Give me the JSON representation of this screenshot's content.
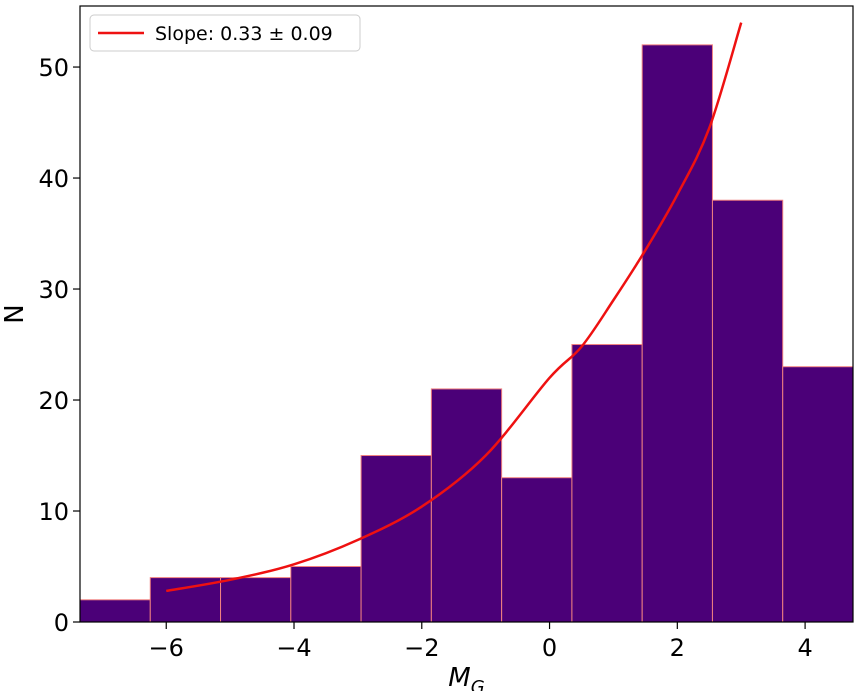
{
  "chart_data": {
    "type": "bar",
    "subtype": "histogram",
    "bins": [
      {
        "left": -7.35,
        "right": -6.25,
        "count": 2
      },
      {
        "left": -6.25,
        "right": -5.15,
        "count": 4
      },
      {
        "left": -5.15,
        "right": -4.05,
        "count": 4
      },
      {
        "left": -4.05,
        "right": -2.95,
        "count": 5
      },
      {
        "left": -2.95,
        "right": -1.85,
        "count": 15
      },
      {
        "left": -1.85,
        "right": -0.75,
        "count": 21
      },
      {
        "left": -0.75,
        "right": 0.35,
        "count": 13
      },
      {
        "left": 0.35,
        "right": 1.45,
        "count": 25
      },
      {
        "left": 1.45,
        "right": 2.55,
        "count": 52
      },
      {
        "left": 2.55,
        "right": 3.65,
        "count": 38
      },
      {
        "left": 3.65,
        "right": 4.75,
        "count": 23
      }
    ],
    "fit_curve": {
      "name": "Slope: 0.33 ± 0.09",
      "type": "exponential",
      "points": [
        [
          -6.0,
          2.8
        ],
        [
          -5.0,
          3.8
        ],
        [
          -4.0,
          5.2
        ],
        [
          -3.0,
          7.4
        ],
        [
          -2.0,
          10.4
        ],
        [
          -1.0,
          15.0
        ],
        [
          0.0,
          22.0
        ],
        [
          0.5,
          24.8
        ],
        [
          1.0,
          29.0
        ],
        [
          1.5,
          33.5
        ],
        [
          2.0,
          38.5
        ],
        [
          2.5,
          44.5
        ],
        [
          3.0,
          54.0
        ]
      ]
    },
    "xlabel_main": "M",
    "xlabel_sub": "G",
    "ylabel": "N",
    "xlim": [
      -7.35,
      4.75
    ],
    "ylim": [
      0,
      55.5
    ],
    "xticks": [
      -6,
      -4,
      -2,
      0,
      2,
      4
    ],
    "xtick_labels": [
      "−6",
      "−4",
      "−2",
      "0",
      "2",
      "4"
    ],
    "yticks": [
      0,
      10,
      20,
      30,
      40,
      50
    ],
    "ytick_labels": [
      "0",
      "10",
      "20",
      "30",
      "40",
      "50"
    ],
    "grid": false,
    "legend_position": "upper-left",
    "colors": {
      "bar_fill": "#4b0078",
      "bar_edge": "#f08080",
      "fit_line": "#ee1111"
    }
  }
}
